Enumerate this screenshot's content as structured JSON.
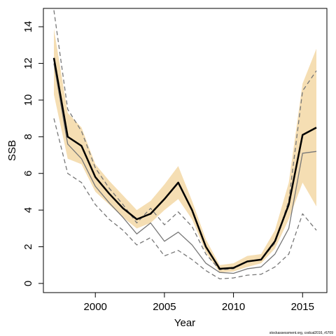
{
  "chart_data": {
    "type": "line",
    "x_label": "Year",
    "y_label": "SSB",
    "note": "stockassessment.org, codcat2016, r6709",
    "x": [
      1997,
      1998,
      1999,
      2000,
      2001,
      2002,
      2003,
      2004,
      2005,
      2006,
      2007,
      2008,
      2009,
      2010,
      2011,
      2012,
      2013,
      2014,
      2015,
      2016
    ],
    "band": {
      "color": "#f5deb3",
      "upper": [
        13.9,
        9.3,
        8.5,
        6.5,
        5.6,
        4.8,
        4.0,
        4.5,
        5.4,
        6.4,
        4.5,
        2.4,
        1.0,
        1.1,
        1.5,
        1.6,
        2.9,
        5.5,
        10.9,
        12.8
      ],
      "lower": [
        10.3,
        6.8,
        6.5,
        5.0,
        4.3,
        3.6,
        3.0,
        3.3,
        4.0,
        4.6,
        3.5,
        1.7,
        0.6,
        0.65,
        0.9,
        1.1,
        1.9,
        3.5,
        5.5,
        4.2
      ]
    },
    "series": [
      {
        "color": "#777777",
        "dash": true,
        "width": 1.3,
        "values": [
          14.9,
          9.5,
          8.3,
          6.3,
          5.2,
          4.3,
          3.3,
          4.1,
          3.2,
          3.9,
          3.1,
          1.6,
          0.75,
          0.8,
          1.2,
          1.3,
          2.2,
          4.5,
          10.5,
          11.6
        ]
      },
      {
        "color": "#777777",
        "dash": true,
        "width": 1.3,
        "values": [
          9.0,
          6.0,
          5.5,
          4.3,
          3.5,
          2.9,
          2.1,
          2.5,
          1.5,
          1.8,
          1.3,
          0.7,
          0.25,
          0.3,
          0.45,
          0.5,
          0.9,
          1.6,
          3.8,
          2.9
        ]
      },
      {
        "color": "#777777",
        "dash": false,
        "width": 1.3,
        "values": [
          12.0,
          7.6,
          6.8,
          5.3,
          4.4,
          3.6,
          2.7,
          3.3,
          2.3,
          2.8,
          2.1,
          1.1,
          0.6,
          0.55,
          0.8,
          0.9,
          1.6,
          3.0,
          7.1,
          7.2
        ]
      },
      {
        "color": "#000000",
        "dash": false,
        "width": 2.5,
        "values": [
          12.3,
          8.0,
          7.5,
          5.8,
          4.9,
          4.1,
          3.5,
          3.8,
          4.6,
          5.5,
          4.0,
          2.0,
          0.8,
          0.85,
          1.2,
          1.3,
          2.3,
          4.3,
          8.1,
          8.5
        ]
      }
    ],
    "xlim": [
      1996.24,
      2016.76
    ],
    "xticks": [
      2000,
      2005,
      2010,
      2015
    ],
    "ylim": [
      -0.5,
      15
    ],
    "yticks": [
      0,
      2,
      4,
      6,
      8,
      10,
      12,
      14
    ]
  }
}
